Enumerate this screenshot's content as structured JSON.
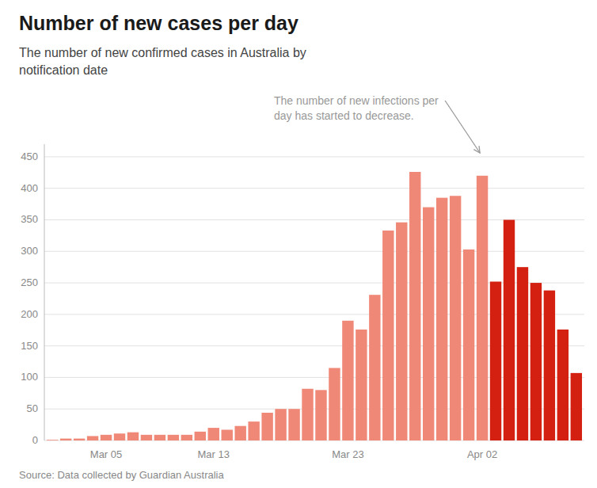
{
  "chart_data": {
    "type": "bar",
    "title": "Number of new cases per day",
    "subtitle": "The number of new confirmed cases in Australia by\nnotification date",
    "annotations": [
      "The number of new infections per",
      "day has started to decrease."
    ],
    "source": "Source: Data collected by Guardian Australia",
    "categories": [
      null,
      null,
      null,
      null,
      "Mar 05",
      null,
      null,
      null,
      null,
      null,
      null,
      null,
      "Mar 13",
      null,
      null,
      null,
      null,
      null,
      null,
      null,
      null,
      null,
      "Mar 23",
      null,
      null,
      null,
      null,
      null,
      null,
      null,
      null,
      null,
      "Apr 02",
      null,
      null,
      null,
      null,
      null,
      null,
      null
    ],
    "values": [
      1,
      3,
      3,
      7,
      9,
      11,
      13,
      9,
      9,
      9,
      9,
      14,
      20,
      17,
      23,
      30,
      44,
      50,
      50,
      82,
      80,
      115,
      190,
      176,
      231,
      333,
      346,
      426,
      370,
      385,
      388,
      303,
      420,
      252,
      350,
      275,
      250,
      238,
      176,
      107
    ],
    "colors": [
      "#F08878",
      "#F08878",
      "#F08878",
      "#F08878",
      "#F08878",
      "#F08878",
      "#F08878",
      "#F08878",
      "#F08878",
      "#F08878",
      "#F08878",
      "#F08878",
      "#F08878",
      "#F08878",
      "#F08878",
      "#F08878",
      "#F08878",
      "#F08878",
      "#F08878",
      "#F08878",
      "#F08878",
      "#F08878",
      "#F08878",
      "#F08878",
      "#F08878",
      "#F08878",
      "#F08878",
      "#F08878",
      "#F08878",
      "#F08878",
      "#F08878",
      "#F08878",
      "#F08878",
      "#D42010",
      "#D42010",
      "#D42010",
      "#D42010",
      "#D42010",
      "#D42010",
      "#D42010"
    ],
    "ylim": [
      0,
      470
    ],
    "yticks": [
      0,
      50,
      100,
      150,
      200,
      250,
      300,
      350,
      400,
      450
    ],
    "grid": true
  }
}
